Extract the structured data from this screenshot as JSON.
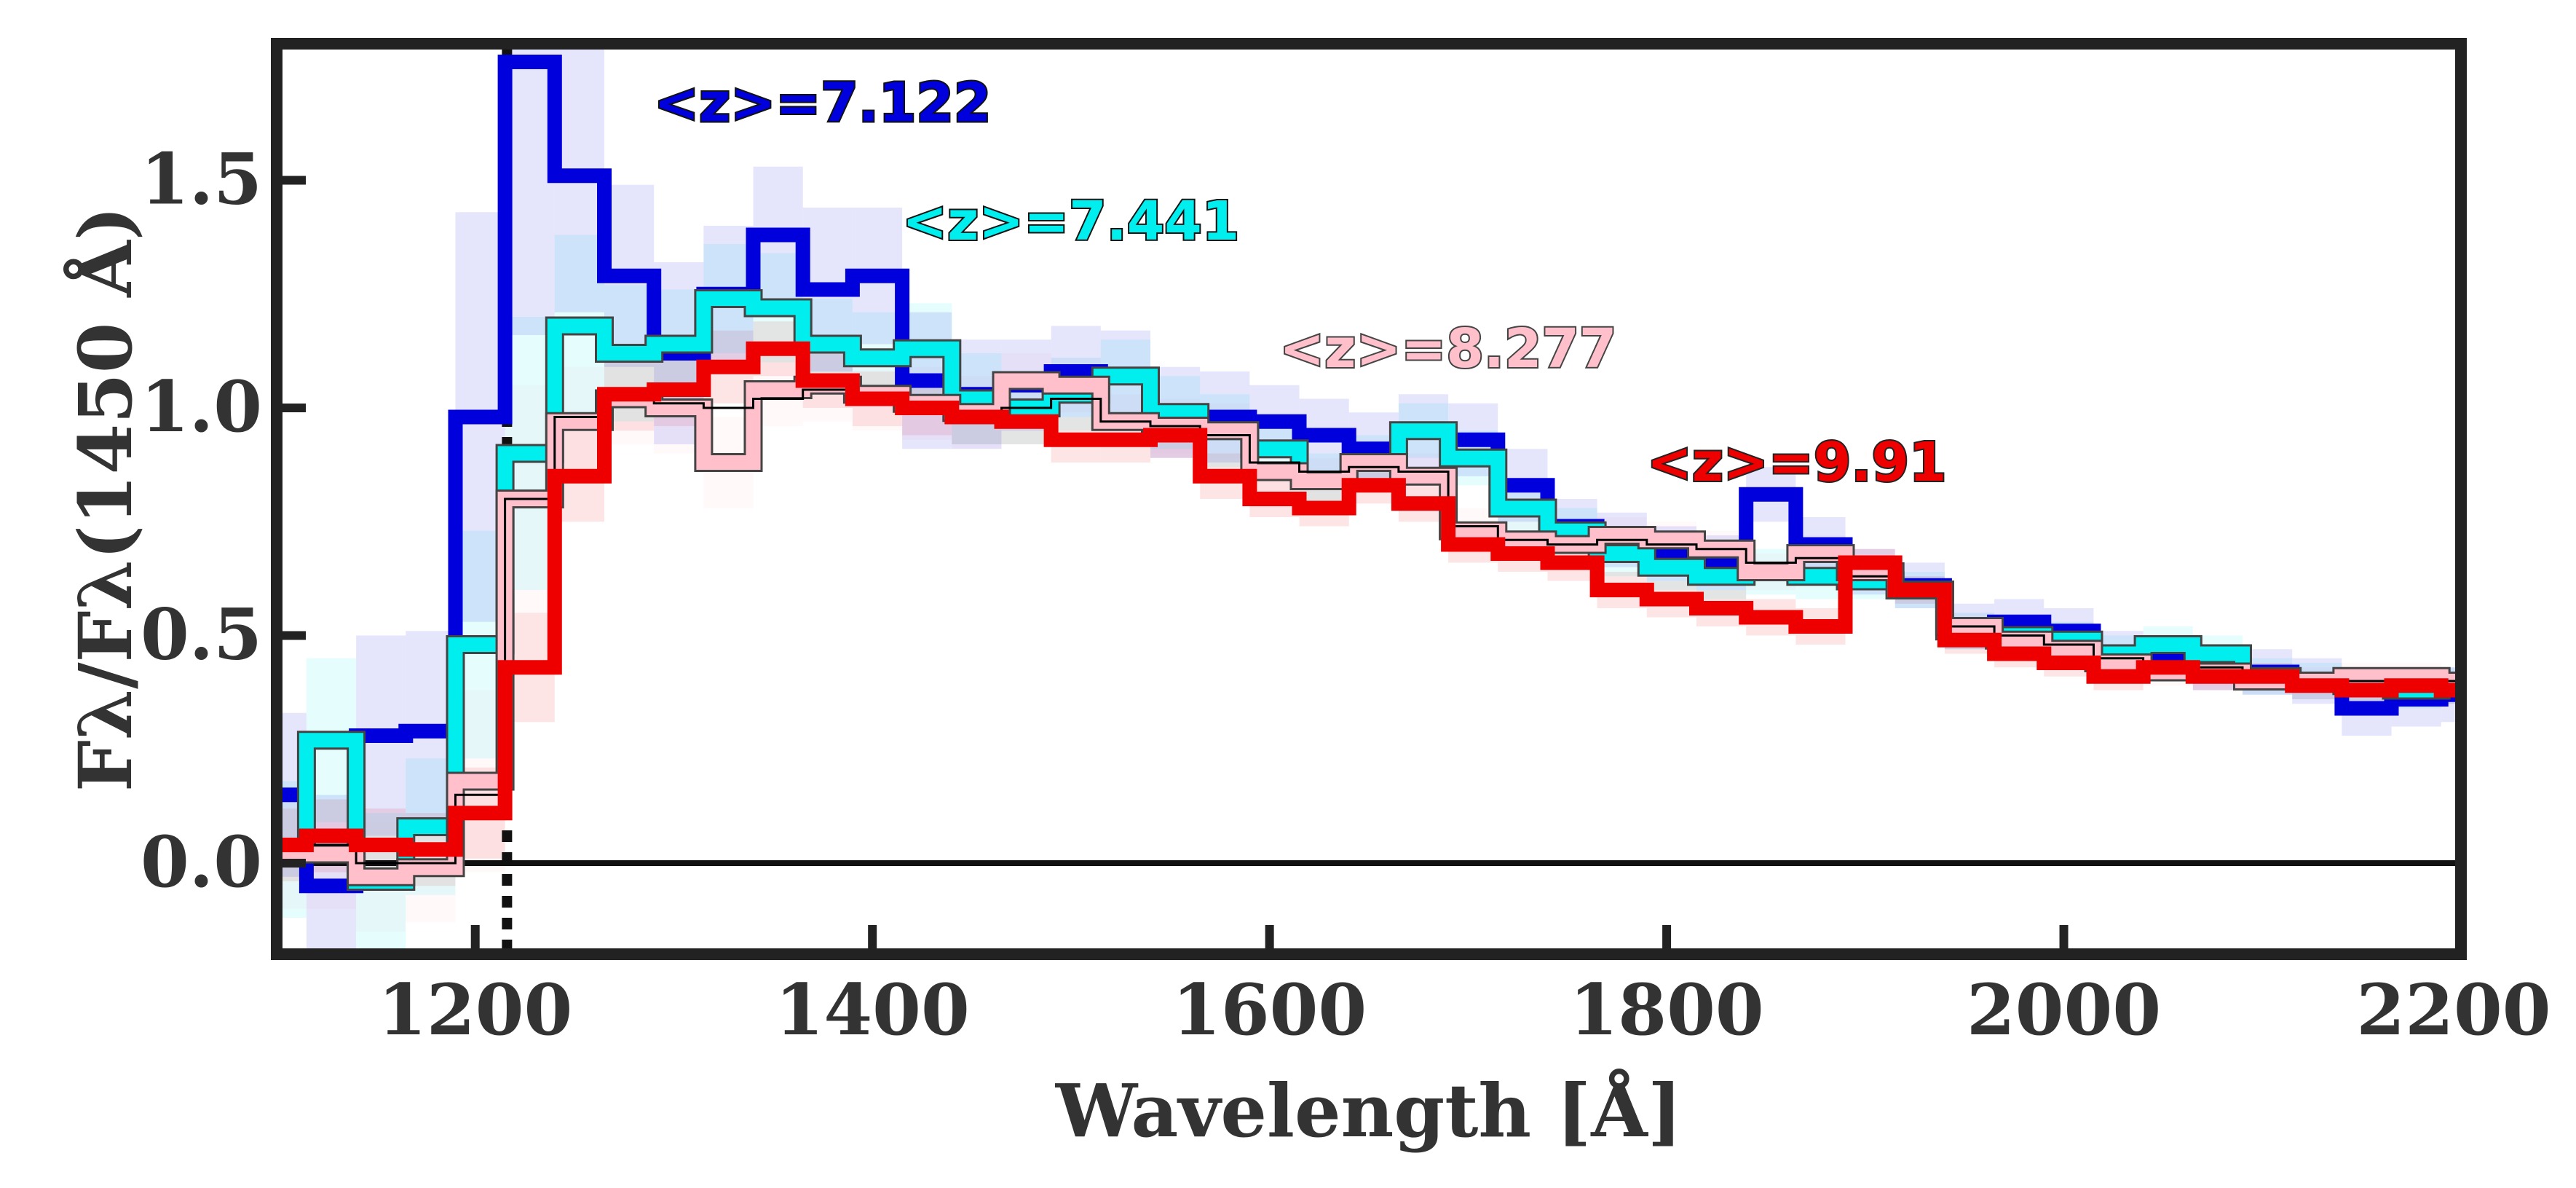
{
  "chart_data": {
    "type": "line",
    "title": "",
    "xlabel": "Wavelength [Å]",
    "ylabel": "Fλ/Fλ(1450 Å)",
    "xlim": [
      1100,
      2200
    ],
    "ylim": [
      -0.2,
      1.8
    ],
    "xticks": [
      1200,
      1400,
      1600,
      1800,
      2000,
      2200
    ],
    "yticks": [
      0.0,
      0.5,
      1.0,
      1.5
    ],
    "xtick_labels": [
      "1200",
      "1400",
      "1600",
      "1800",
      "2000",
      "2200"
    ],
    "ytick_labels": [
      "0.0",
      "0.5",
      "1.0",
      "1.5"
    ],
    "grid": false,
    "reference_lines": {
      "vertical_dotted_x": 1216,
      "horizontal_solid_y": 0.0
    },
    "series": [
      {
        "name": "<z>=7.122",
        "color": "#0000dd",
        "line_width": 20,
        "bin_edges": [
          1100,
          1115,
          1140,
          1165,
          1190,
          1215,
          1240,
          1265,
          1290,
          1315,
          1340,
          1365,
          1390,
          1415,
          1440,
          1465,
          1490,
          1515,
          1540,
          1565,
          1590,
          1615,
          1640,
          1665,
          1690,
          1715,
          1740,
          1765,
          1790,
          1815,
          1840,
          1865,
          1890,
          1915,
          1940,
          1965,
          1990,
          2015,
          2040,
          2065,
          2090,
          2115,
          2140,
          2165,
          2190,
          2200
        ],
        "values": [
          0.15,
          -0.05,
          0.28,
          0.29,
          0.98,
          1.76,
          1.51,
          1.29,
          1.12,
          1.25,
          1.38,
          1.26,
          1.29,
          1.06,
          1.03,
          1.05,
          1.08,
          1.07,
          0.99,
          0.98,
          0.97,
          0.94,
          0.91,
          0.95,
          0.93,
          0.83,
          0.74,
          0.71,
          0.68,
          0.66,
          0.81,
          0.7,
          0.64,
          0.61,
          0.52,
          0.53,
          0.51,
          0.46,
          0.45,
          0.43,
          0.42,
          0.4,
          0.34,
          0.36,
          0.37
        ],
        "error": [
          0.18,
          0.2,
          0.22,
          0.22,
          0.45,
          0.6,
          0.3,
          0.2,
          0.2,
          0.15,
          0.15,
          0.18,
          0.15,
          0.15,
          0.12,
          0.1,
          0.1,
          0.1,
          0.1,
          0.1,
          0.08,
          0.08,
          0.08,
          0.08,
          0.08,
          0.08,
          0.06,
          0.06,
          0.06,
          0.06,
          0.06,
          0.06,
          0.05,
          0.05,
          0.05,
          0.05,
          0.05,
          0.05,
          0.05,
          0.05,
          0.05,
          0.05,
          0.06,
          0.06,
          0.06
        ]
      },
      {
        "name": "<z>=7.441",
        "color": "#00eeee",
        "line_width": 20,
        "bin_edges": [
          1100,
          1115,
          1140,
          1165,
          1190,
          1215,
          1240,
          1265,
          1290,
          1315,
          1340,
          1365,
          1390,
          1415,
          1440,
          1465,
          1490,
          1515,
          1540,
          1565,
          1590,
          1615,
          1640,
          1665,
          1690,
          1715,
          1740,
          1765,
          1790,
          1815,
          1840,
          1865,
          1890,
          1915,
          1940,
          1965,
          1990,
          2015,
          2040,
          2065,
          2090,
          2115,
          2140,
          2165,
          2190,
          2200
        ],
        "values": [
          0.03,
          0.27,
          -0.04,
          0.08,
          0.48,
          0.9,
          1.18,
          1.12,
          1.14,
          1.24,
          1.22,
          1.14,
          1.11,
          1.13,
          1.02,
          1.0,
          1.03,
          1.07,
          0.99,
          0.95,
          0.91,
          0.84,
          0.88,
          0.95,
          0.89,
          0.78,
          0.73,
          0.68,
          0.65,
          0.63,
          0.64,
          0.63,
          0.62,
          0.6,
          0.51,
          0.5,
          0.49,
          0.46,
          0.48,
          0.46,
          0.41,
          0.4,
          0.39,
          0.38,
          0.39
        ],
        "error": [
          0.15,
          0.18,
          0.15,
          0.15,
          0.25,
          0.3,
          0.2,
          0.15,
          0.12,
          0.12,
          0.12,
          0.1,
          0.1,
          0.1,
          0.1,
          0.08,
          0.08,
          0.08,
          0.08,
          0.08,
          0.06,
          0.06,
          0.06,
          0.06,
          0.06,
          0.06,
          0.05,
          0.05,
          0.05,
          0.05,
          0.05,
          0.05,
          0.04,
          0.04,
          0.04,
          0.04,
          0.04,
          0.04,
          0.04,
          0.04,
          0.04,
          0.04,
          0.04,
          0.04,
          0.04
        ]
      },
      {
        "name": "<z>=8.277",
        "color": "#ffc0cb",
        "line_width": 20,
        "bin_edges": [
          1100,
          1115,
          1140,
          1165,
          1190,
          1215,
          1240,
          1265,
          1290,
          1315,
          1340,
          1365,
          1390,
          1415,
          1440,
          1465,
          1490,
          1515,
          1540,
          1565,
          1590,
          1615,
          1640,
          1665,
          1690,
          1715,
          1740,
          1765,
          1790,
          1815,
          1840,
          1865,
          1890,
          1915,
          1940,
          1965,
          1990,
          2015,
          2040,
          2065,
          2090,
          2115,
          2140,
          2165,
          2190,
          2200
        ],
        "values": [
          0.02,
          0.02,
          -0.03,
          -0.01,
          0.18,
          0.8,
          0.97,
          1.02,
          1.0,
          0.88,
          1.04,
          1.05,
          1.03,
          1.01,
          0.99,
          1.06,
          1.05,
          0.97,
          0.96,
          0.95,
          0.86,
          0.84,
          0.88,
          0.85,
          0.73,
          0.71,
          0.7,
          0.72,
          0.71,
          0.69,
          0.64,
          0.68,
          0.64,
          0.6,
          0.52,
          0.49,
          0.47,
          0.44,
          0.42,
          0.42,
          0.4,
          0.4,
          0.41,
          0.41,
          0.4
        ],
        "error": [
          0.12,
          0.12,
          0.12,
          0.12,
          0.2,
          0.25,
          0.12,
          0.1,
          0.1,
          0.1,
          0.08,
          0.08,
          0.08,
          0.08,
          0.08,
          0.06,
          0.06,
          0.06,
          0.06,
          0.06,
          0.05,
          0.05,
          0.05,
          0.05,
          0.05,
          0.05,
          0.04,
          0.04,
          0.04,
          0.04,
          0.04,
          0.04,
          0.03,
          0.03,
          0.03,
          0.03,
          0.03,
          0.03,
          0.03,
          0.03,
          0.03,
          0.03,
          0.03,
          0.03,
          0.03
        ]
      },
      {
        "name": "<z>=9.91",
        "color": "#ee0000",
        "line_width": 20,
        "bin_edges": [
          1100,
          1115,
          1140,
          1165,
          1190,
          1215,
          1240,
          1265,
          1290,
          1315,
          1340,
          1365,
          1390,
          1415,
          1440,
          1465,
          1490,
          1515,
          1540,
          1565,
          1590,
          1615,
          1640,
          1665,
          1690,
          1715,
          1740,
          1765,
          1790,
          1815,
          1840,
          1865,
          1890,
          1915,
          1940,
          1965,
          1990,
          2015,
          2040,
          2065,
          2090,
          2115,
          2140,
          2165,
          2190,
          2200
        ],
        "values": [
          0.04,
          0.06,
          0.04,
          0.03,
          0.11,
          0.43,
          0.85,
          1.03,
          1.04,
          1.09,
          1.13,
          1.06,
          1.02,
          1.0,
          0.98,
          0.97,
          0.93,
          0.93,
          0.94,
          0.85,
          0.8,
          0.78,
          0.83,
          0.79,
          0.7,
          0.68,
          0.66,
          0.6,
          0.58,
          0.56,
          0.54,
          0.52,
          0.66,
          0.6,
          0.49,
          0.46,
          0.44,
          0.41,
          0.43,
          0.41,
          0.41,
          0.39,
          0.38,
          0.39,
          0.38
        ],
        "error": [
          0.08,
          0.08,
          0.08,
          0.08,
          0.1,
          0.12,
          0.1,
          0.08,
          0.08,
          0.08,
          0.06,
          0.06,
          0.06,
          0.06,
          0.06,
          0.05,
          0.05,
          0.05,
          0.05,
          0.05,
          0.04,
          0.04,
          0.04,
          0.04,
          0.04,
          0.04,
          0.04,
          0.04,
          0.04,
          0.04,
          0.04,
          0.04,
          0.03,
          0.03,
          0.03,
          0.03,
          0.03,
          0.03,
          0.03,
          0.03,
          0.03,
          0.03,
          0.03,
          0.03,
          0.03
        ]
      }
    ],
    "reference_spectrum": {
      "color": "#000000",
      "line_width": 3,
      "bin_edges": [
        1100,
        1115,
        1140,
        1165,
        1190,
        1215,
        1240,
        1265,
        1290,
        1315,
        1340,
        1365,
        1390,
        1415,
        1440,
        1465,
        1490,
        1515,
        1540,
        1565,
        1590,
        1615,
        1640,
        1665,
        1690,
        1715,
        1740,
        1765,
        1790,
        1815,
        1840,
        1865,
        1890,
        1915,
        1940,
        1965,
        1990,
        2015,
        2040,
        2065,
        2090,
        2115,
        2140,
        2165,
        2190,
        2200
      ],
      "values": [
        0.03,
        0.04,
        0.0,
        0.0,
        0.15,
        0.8,
        0.98,
        1.02,
        1.01,
        1.0,
        1.02,
        1.04,
        1.03,
        1.01,
        0.98,
        1.0,
        1.02,
        0.97,
        0.96,
        0.94,
        0.88,
        0.86,
        0.87,
        0.86,
        0.74,
        0.71,
        0.7,
        0.71,
        0.7,
        0.69,
        0.66,
        0.67,
        0.63,
        0.6,
        0.52,
        0.5,
        0.48,
        0.45,
        0.44,
        0.43,
        0.41,
        0.4,
        0.4,
        0.4,
        0.4
      ]
    },
    "annotations": [
      {
        "text": "<z>=7.122",
        "series": 0,
        "at": {
          "x": 1290,
          "y": 1.63
        }
      },
      {
        "text": "<z>=7.441",
        "series": 1,
        "at": {
          "x": 1415,
          "y": 1.37
        }
      },
      {
        "text": "<z>=8.277",
        "series": 2,
        "at": {
          "x": 1605,
          "y": 1.09
        }
      },
      {
        "text": "<z>=9.91",
        "series": 3,
        "at": {
          "x": 1790,
          "y": 0.84
        }
      }
    ]
  }
}
